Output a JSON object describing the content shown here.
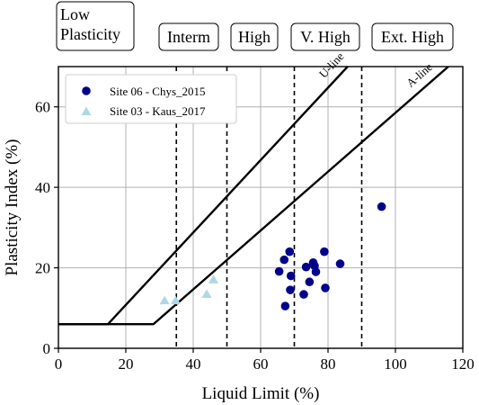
{
  "zones": [
    {
      "label": "Low\nPlasticity"
    },
    {
      "label": "Interm"
    },
    {
      "label": "High"
    },
    {
      "label": "V. High"
    },
    {
      "label": "Ext. High"
    }
  ],
  "chart_data": {
    "type": "scatter",
    "xlabel": "Liquid Limit (%)",
    "ylabel": "Plasticity Index (%)",
    "xlim": [
      0,
      120
    ],
    "ylim": [
      0,
      70
    ],
    "xticks": [
      0,
      20,
      40,
      60,
      80,
      100,
      120
    ],
    "yticks": [
      0,
      20,
      40,
      60
    ],
    "grid": true,
    "legend_position": "upper-left",
    "zone_boundaries_ll": [
      35,
      50,
      70,
      90
    ],
    "u_line": {
      "label": "U-line",
      "points": [
        [
          0,
          6
        ],
        [
          14.7,
          6
        ],
        [
          91.6,
          75.2
        ]
      ]
    },
    "a_line": {
      "label": "A-line",
      "points": [
        [
          0,
          6
        ],
        [
          28.2,
          6
        ],
        [
          115.7,
          70
        ]
      ]
    },
    "series": [
      {
        "name": "Site 06 - Chys_2015",
        "marker": "circle",
        "color": "#00008b",
        "points": [
          [
            65.5,
            19.1
          ],
          [
            67,
            22
          ],
          [
            67.3,
            10.5
          ],
          [
            68.6,
            24
          ],
          [
            68.8,
            14.5
          ],
          [
            69,
            18
          ],
          [
            72.8,
            13.4
          ],
          [
            73.5,
            20.2
          ],
          [
            74.5,
            16.5
          ],
          [
            75.6,
            21.3
          ],
          [
            76,
            20.5
          ],
          [
            76.4,
            19
          ],
          [
            78.9,
            24
          ],
          [
            79.2,
            15
          ],
          [
            83.6,
            21
          ],
          [
            95.9,
            35.2
          ]
        ]
      },
      {
        "name": "Site 03 - Kaus_2017",
        "marker": "triangle",
        "color": "#add8e6",
        "points": [
          [
            31.5,
            11.8
          ],
          [
            34.8,
            11.8
          ],
          [
            44,
            13.4
          ],
          [
            46,
            17
          ]
        ]
      }
    ]
  }
}
